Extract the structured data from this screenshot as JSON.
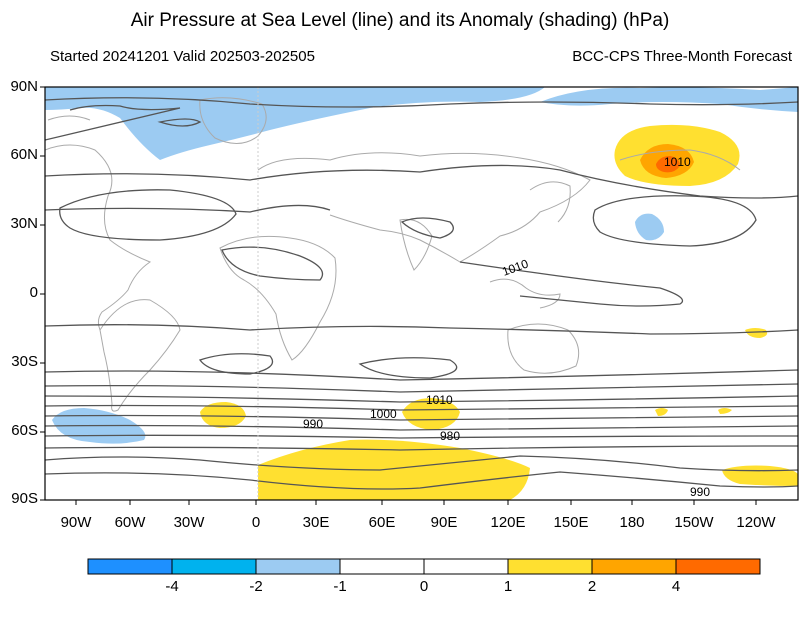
{
  "title": "Air Pressure at Sea Level (line) and its Anomaly (shading) (hPa)",
  "subtitle_left": "Started 20241201  Valid 202503-202505",
  "subtitle_right": "BCC-CPS Three-Month Forecast",
  "lat_labels": [
    "90N",
    "60N",
    "30N",
    "0",
    "30S",
    "60S",
    "90S"
  ],
  "lon_labels": [
    "90W",
    "60W",
    "30W",
    "0",
    "30E",
    "60E",
    "90E",
    "120E",
    "150E",
    "180",
    "150W",
    "120W"
  ],
  "contour_labels": [
    "1010",
    "1010",
    "990",
    "1000",
    "1010",
    "980",
    "990"
  ],
  "colorbar": {
    "labels": [
      "-4",
      "-2",
      "-1",
      "0",
      "1",
      "2",
      "4"
    ],
    "colors": [
      "#1e90ff",
      "#00b2ee",
      "#9ccbf2",
      "#ffffff",
      "#ffffff",
      "#ffe030",
      "#ffa500",
      "#ff6a00"
    ]
  },
  "colors": {
    "negative_anomaly": "#9ccbf2",
    "positive_anomaly_1": "#ffe030",
    "positive_anomaly_2": "#ffa500",
    "positive_anomaly_4": "#ff6a00",
    "isobar": "#555555",
    "coastline": "#aaaaaa"
  }
}
